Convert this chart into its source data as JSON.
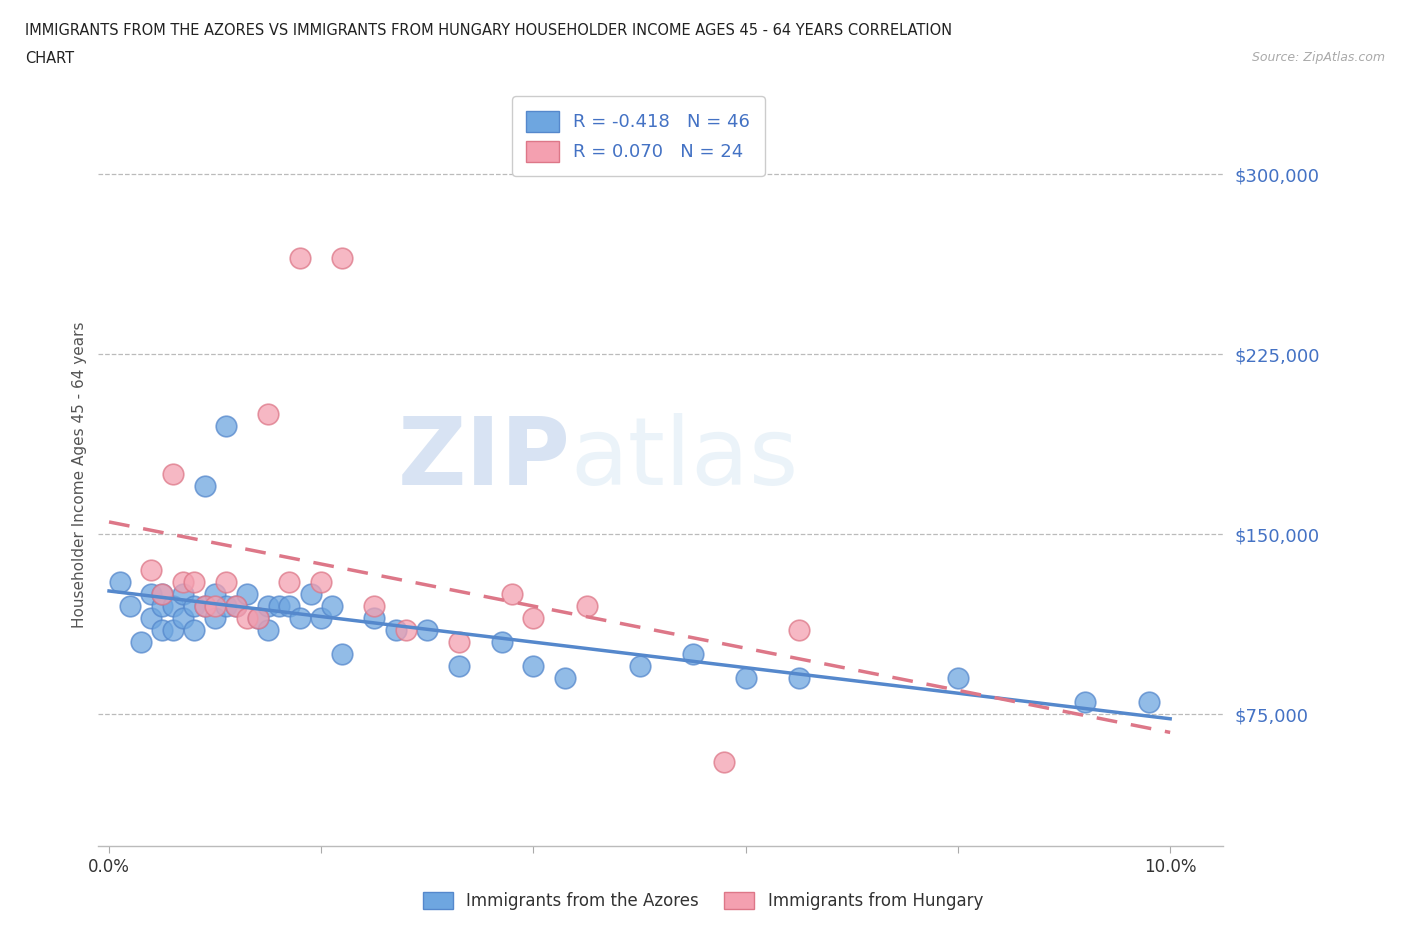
{
  "title_line1": "IMMIGRANTS FROM THE AZORES VS IMMIGRANTS FROM HUNGARY HOUSEHOLDER INCOME AGES 45 - 64 YEARS CORRELATION",
  "title_line2": "CHART",
  "source_text": "Source: ZipAtlas.com",
  "ylabel": "Householder Income Ages 45 - 64 years",
  "xlim": [
    -0.001,
    0.105
  ],
  "ylim": [
    20000,
    330000
  ],
  "yticks": [
    75000,
    150000,
    225000,
    300000
  ],
  "ytick_labels": [
    "$75,000",
    "$150,000",
    "$225,000",
    "$300,000"
  ],
  "xticks": [
    0.0,
    0.02,
    0.04,
    0.06,
    0.08,
    0.1
  ],
  "xtick_labels": [
    "0.0%",
    "",
    "",
    "",
    "",
    "10.0%"
  ],
  "azores_color": "#6ea6e0",
  "azores_edge": "#5588cc",
  "hungary_color": "#f4a0b0",
  "hungary_edge": "#dd7788",
  "azores_R": -0.418,
  "azores_N": 46,
  "hungary_R": 0.07,
  "hungary_N": 24,
  "watermark_ZIP": "ZIP",
  "watermark_atlas": "atlas",
  "azores_x": [
    0.001,
    0.002,
    0.003,
    0.004,
    0.004,
    0.005,
    0.005,
    0.005,
    0.006,
    0.006,
    0.007,
    0.007,
    0.008,
    0.008,
    0.009,
    0.009,
    0.01,
    0.01,
    0.011,
    0.011,
    0.012,
    0.013,
    0.014,
    0.015,
    0.015,
    0.016,
    0.017,
    0.018,
    0.019,
    0.02,
    0.021,
    0.022,
    0.025,
    0.027,
    0.03,
    0.033,
    0.037,
    0.04,
    0.043,
    0.05,
    0.055,
    0.06,
    0.065,
    0.08,
    0.092,
    0.098
  ],
  "azores_y": [
    130000,
    120000,
    105000,
    125000,
    115000,
    120000,
    110000,
    125000,
    120000,
    110000,
    115000,
    125000,
    120000,
    110000,
    170000,
    120000,
    115000,
    125000,
    195000,
    120000,
    120000,
    125000,
    115000,
    120000,
    110000,
    120000,
    120000,
    115000,
    125000,
    115000,
    120000,
    100000,
    115000,
    110000,
    110000,
    95000,
    105000,
    95000,
    90000,
    95000,
    100000,
    90000,
    90000,
    90000,
    80000,
    80000
  ],
  "hungary_x": [
    0.004,
    0.005,
    0.006,
    0.007,
    0.008,
    0.009,
    0.01,
    0.011,
    0.012,
    0.013,
    0.014,
    0.015,
    0.017,
    0.018,
    0.02,
    0.022,
    0.025,
    0.028,
    0.033,
    0.038,
    0.04,
    0.045,
    0.058,
    0.065
  ],
  "hungary_y": [
    135000,
    125000,
    175000,
    130000,
    130000,
    120000,
    120000,
    130000,
    120000,
    115000,
    115000,
    200000,
    130000,
    265000,
    130000,
    265000,
    120000,
    110000,
    105000,
    125000,
    115000,
    120000,
    55000,
    110000
  ]
}
